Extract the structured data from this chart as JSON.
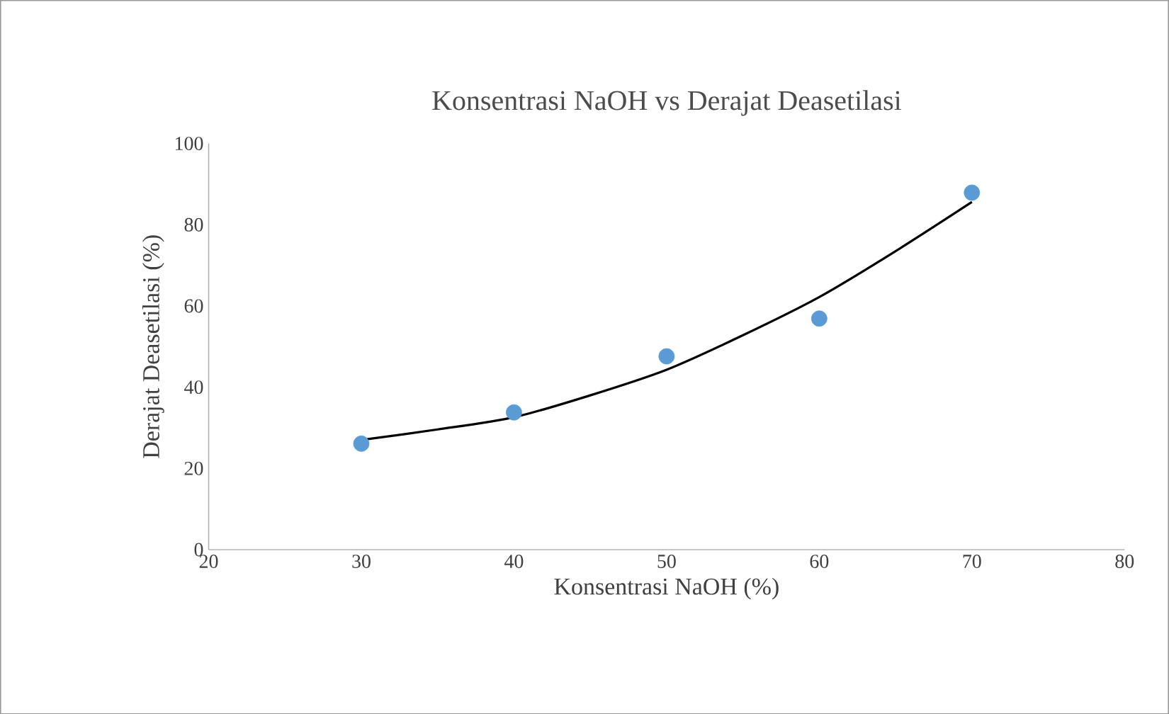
{
  "chart_data": {
    "type": "scatter",
    "title": "Konsentrasi NaOH vs Derajat Deasetilasi",
    "xlabel": "Konsentrasi NaOH (%)",
    "ylabel": "Derajat Deasetilasi (%)",
    "xlim": [
      20,
      80
    ],
    "xticks": [
      20,
      30,
      40,
      50,
      60,
      70,
      80
    ],
    "ylim": [
      0,
      100
    ],
    "yticks": [
      0,
      20,
      40,
      60,
      80,
      100
    ],
    "grid": false,
    "series": [
      {
        "color": "#5b9bd5",
        "marker": "circle",
        "x": [
          30,
          40,
          50,
          60,
          70
        ],
        "values": [
          26.1,
          33.8,
          47.6,
          56.9,
          87.9
        ]
      },
      {
        "type": "line",
        "marker": "none",
        "color": "#000000",
        "x": [
          30,
          35,
          40,
          45,
          50,
          55,
          60,
          65,
          70
        ],
        "values": [
          27.0,
          29.6,
          32.6,
          38.0,
          44.3,
          52.8,
          62.2,
          73.5,
          85.6
        ]
      }
    ]
  }
}
